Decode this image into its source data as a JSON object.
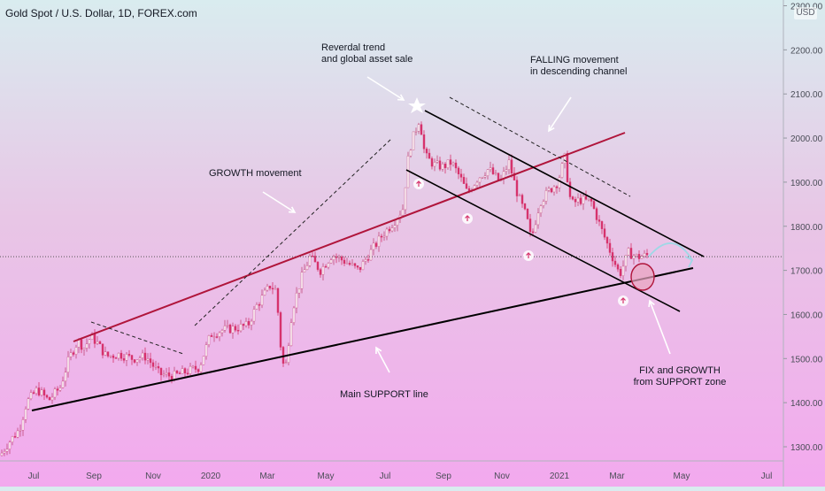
{
  "header": {
    "title": "Gold Spot / U.S. Dollar, 1D, FOREX.com",
    "currency": "USD"
  },
  "chart_data": {
    "type": "candlestick",
    "title": "Gold Spot / U.S. Dollar, 1D, FOREX.com",
    "x_axis": {
      "tick_labels": [
        "Jul",
        "Sep",
        "Nov",
        "2020",
        "Mar",
        "May",
        "Jul",
        "Sep",
        "Nov",
        "2021",
        "Mar",
        "May",
        "Jul"
      ]
    },
    "y_axis": {
      "range": [
        1255,
        2290
      ],
      "tick_labels": [
        "1300.00",
        "1400.00",
        "1500.00",
        "1600.00",
        "1700.00",
        "1800.00",
        "1900.00",
        "2000.00",
        "2100.00",
        "2200.00",
        "2300.00"
      ]
    },
    "current_price_line": 1731,
    "price_path": [
      [
        0,
        1280
      ],
      [
        10,
        1310
      ],
      [
        22,
        1340
      ],
      [
        30,
        1400
      ],
      [
        42,
        1430
      ],
      [
        55,
        1405
      ],
      [
        68,
        1435
      ],
      [
        78,
        1500
      ],
      [
        88,
        1540
      ],
      [
        95,
        1525
      ],
      [
        103,
        1550
      ],
      [
        110,
        1535
      ],
      [
        120,
        1505
      ],
      [
        135,
        1510
      ],
      [
        150,
        1500
      ],
      [
        165,
        1505
      ],
      [
        180,
        1465
      ],
      [
        195,
        1460
      ],
      [
        210,
        1470
      ],
      [
        225,
        1480
      ],
      [
        238,
        1555
      ],
      [
        252,
        1565
      ],
      [
        268,
        1570
      ],
      [
        280,
        1575
      ],
      [
        290,
        1620
      ],
      [
        305,
        1665
      ],
      [
        312,
        1655
      ],
      [
        318,
        1505
      ],
      [
        322,
        1470
      ],
      [
        330,
        1610
      ],
      [
        340,
        1680
      ],
      [
        350,
        1730
      ],
      [
        362,
        1700
      ],
      [
        375,
        1735
      ],
      [
        390,
        1720
      ],
      [
        405,
        1700
      ],
      [
        418,
        1740
      ],
      [
        432,
        1780
      ],
      [
        445,
        1810
      ],
      [
        455,
        1840
      ],
      [
        462,
        1970
      ],
      [
        468,
        2010
      ],
      [
        474,
        2045
      ],
      [
        480,
        1960
      ],
      [
        490,
        1940
      ],
      [
        500,
        1935
      ],
      [
        510,
        1945
      ],
      [
        520,
        1910
      ],
      [
        528,
        1875
      ],
      [
        540,
        1910
      ],
      [
        552,
        1930
      ],
      [
        565,
        1900
      ],
      [
        575,
        1945
      ],
      [
        585,
        1870
      ],
      [
        595,
        1820
      ],
      [
        600,
        1770
      ],
      [
        610,
        1855
      ],
      [
        620,
        1880
      ],
      [
        630,
        1900
      ],
      [
        638,
        1955
      ],
      [
        645,
        1850
      ],
      [
        655,
        1860
      ],
      [
        668,
        1855
      ],
      [
        680,
        1790
      ],
      [
        690,
        1740
      ],
      [
        700,
        1690
      ],
      [
        710,
        1740
      ],
      [
        720,
        1730
      ],
      [
        733,
        1735
      ]
    ],
    "annotations": [
      {
        "text": "Reverdal trend",
        "line": 1
      },
      {
        "text": "and global asset sale",
        "line": 2
      },
      {
        "text": "FALLING movement",
        "line": 1
      },
      {
        "text": "in descending channel",
        "line": 2
      },
      {
        "text": "GROWTH movement",
        "line": 1
      },
      {
        "text": "Main SUPPORT line",
        "line": 1
      },
      {
        "text": "FIX and GROWTH",
        "line": 1
      },
      {
        "text": "from SUPPORT zone",
        "line": 2
      }
    ],
    "colors": {
      "candle_up": "#ffffff",
      "candle_down": "#d6336c",
      "trendline": "#000000",
      "growth_channel": "#b0153b"
    }
  }
}
